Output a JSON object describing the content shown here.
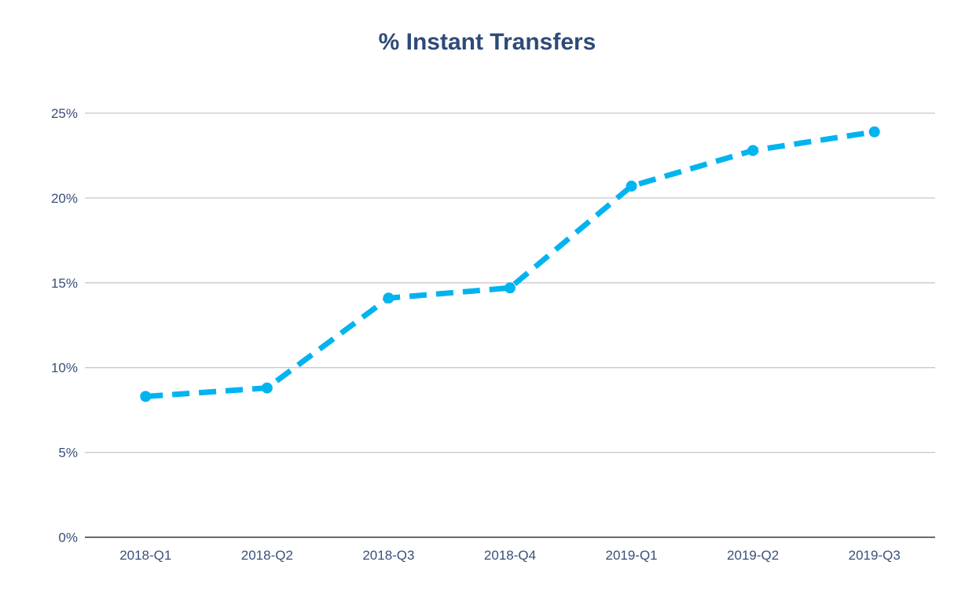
{
  "chart_data": {
    "type": "line",
    "title": "% Instant Transfers",
    "xlabel": "",
    "ylabel": "",
    "categories": [
      "2018-Q1",
      "2018-Q2",
      "2018-Q3",
      "2018-Q4",
      "2019-Q1",
      "2019-Q2",
      "2019-Q3"
    ],
    "series": [
      {
        "values": [
          8.3,
          8.8,
          14.1,
          14.7,
          20.7,
          22.8,
          23.9
        ]
      }
    ],
    "ylim": [
      0,
      25
    ],
    "yticks": [
      0,
      5,
      10,
      15,
      20,
      25
    ],
    "ytick_labels": [
      "0%",
      "5%",
      "10%",
      "15%",
      "20%",
      "25%"
    ],
    "grid": "horizontal",
    "line_style": "dashed with circle markers",
    "legend": "none",
    "colors": {
      "series": "#00b4f0",
      "title": "#2e4a78",
      "tick_text": "#3a4f7a",
      "grid": "#c8c8c8",
      "axis": "#333333"
    }
  }
}
